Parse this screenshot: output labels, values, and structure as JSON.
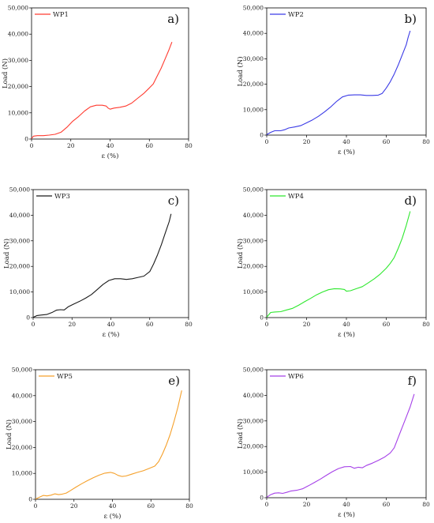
{
  "chart_data": [
    {
      "type": "line",
      "panel_label": "a)",
      "xlabel": "ε (%)",
      "ylabel": "Load (N)",
      "xlim": [
        0,
        80
      ],
      "ylim": [
        0,
        50000
      ],
      "xticks": [
        "0",
        "20",
        "40",
        "60",
        "80"
      ],
      "yticks": [
        "0",
        "10,000",
        "20,000",
        "30,000",
        "40,000",
        "50,000"
      ],
      "grid": false,
      "legend_position": "top-left",
      "color": "#ff3b30",
      "series": [
        {
          "name": "WP1",
          "x": [
            0,
            1,
            3,
            6,
            9,
            12,
            15,
            18,
            21,
            24,
            27,
            30,
            33,
            36,
            38,
            39,
            40,
            42,
            45,
            48,
            51,
            54,
            57,
            60,
            62,
            64,
            66,
            68,
            70,
            71.5
          ],
          "y": [
            200,
            1100,
            1300,
            1300,
            1500,
            1800,
            2600,
            4500,
            6800,
            8600,
            10700,
            12300,
            12900,
            12900,
            12600,
            11800,
            11400,
            11800,
            12100,
            12600,
            13700,
            15500,
            17300,
            19500,
            21000,
            24000,
            27000,
            30500,
            34000,
            37000
          ]
        }
      ]
    },
    {
      "type": "line",
      "panel_label": "b)",
      "xlabel": "ε (%)",
      "ylabel": "Load (N)",
      "xlim": [
        0,
        80
      ],
      "ylim": [
        0,
        50000
      ],
      "xticks": [
        "0",
        "20",
        "40",
        "60",
        "80"
      ],
      "yticks": [
        "0",
        "10,000",
        "20,000",
        "30,000",
        "40,000",
        "50,000"
      ],
      "grid": false,
      "legend_position": "top-left",
      "color": "#3a3ae6",
      "series": [
        {
          "name": "WP2",
          "x": [
            0,
            2,
            4,
            7,
            9,
            11,
            14,
            17,
            20,
            23,
            26,
            29,
            32,
            35,
            38,
            41,
            44,
            47,
            50,
            53,
            56,
            58,
            60,
            62,
            64,
            66,
            68,
            70,
            71,
            72
          ],
          "y": [
            200,
            1100,
            1700,
            1700,
            2100,
            2800,
            3200,
            3700,
            4800,
            6000,
            7400,
            9100,
            11000,
            13200,
            15000,
            15700,
            15800,
            15800,
            15600,
            15600,
            15700,
            16400,
            18500,
            21000,
            24000,
            27500,
            31500,
            35500,
            38500,
            41000
          ]
        }
      ]
    },
    {
      "type": "line",
      "panel_label": "c)",
      "xlabel": "ε (%)",
      "ylabel": "Load (N)",
      "xlim": [
        0,
        80
      ],
      "ylim": [
        0,
        50000
      ],
      "xticks": [
        "0",
        "20",
        "40",
        "60",
        "80"
      ],
      "yticks": [
        "0",
        "10,000",
        "20,000",
        "30,000",
        "40,000",
        "50,000"
      ],
      "grid": false,
      "legend_position": "top-left",
      "color": "#1a1a1a",
      "series": [
        {
          "name": "WP3",
          "x": [
            0,
            2,
            4,
            7,
            10,
            12,
            14,
            16,
            18,
            21,
            24,
            27,
            30,
            33,
            36,
            39,
            42,
            45,
            48,
            51,
            54,
            57,
            60,
            62,
            64,
            66,
            68,
            70,
            71
          ],
          "y": [
            100,
            800,
            1000,
            1200,
            2100,
            2900,
            3100,
            3000,
            4200,
            5300,
            6400,
            7600,
            9000,
            11000,
            13000,
            14500,
            15200,
            15200,
            14900,
            15200,
            15700,
            16200,
            18000,
            21000,
            24500,
            28500,
            33000,
            37500,
            40500
          ]
        }
      ]
    },
    {
      "type": "line",
      "panel_label": "d)",
      "xlabel": "ε (%)",
      "ylabel": "Load (N)",
      "xlim": [
        0,
        80
      ],
      "ylim": [
        0,
        50000
      ],
      "xticks": [
        "0",
        "20",
        "40",
        "60",
        "80"
      ],
      "yticks": [
        "0",
        "10,000",
        "20,000",
        "30,000",
        "40,000",
        "50,000"
      ],
      "grid": false,
      "legend_position": "top-left",
      "color": "#2ee82e",
      "series": [
        {
          "name": "WP4",
          "x": [
            0,
            2,
            4,
            7,
            10,
            13,
            16,
            19,
            22,
            25,
            28,
            31,
            34,
            37,
            39,
            40,
            42,
            45,
            48,
            51,
            54,
            57,
            60,
            62,
            64,
            66,
            68,
            70,
            72
          ],
          "y": [
            200,
            2000,
            2200,
            2300,
            3000,
            3600,
            4800,
            6200,
            7500,
            8900,
            10000,
            10900,
            11300,
            11200,
            11000,
            10300,
            10500,
            11300,
            12100,
            13600,
            15200,
            17000,
            19300,
            21200,
            23500,
            27000,
            31000,
            36000,
            41500
          ]
        }
      ]
    },
    {
      "type": "line",
      "panel_label": "e)",
      "xlabel": "ε (%)",
      "ylabel": "Load (N)",
      "xlim": [
        0,
        80
      ],
      "ylim": [
        0,
        50000
      ],
      "xticks": [
        "0",
        "20",
        "40",
        "60",
        "80"
      ],
      "yticks": [
        "0",
        "10,000",
        "20,000",
        "30,000",
        "40,000",
        "50,000"
      ],
      "grid": false,
      "legend_position": "top-left",
      "color": "#f5a02a",
      "series": [
        {
          "name": "WP5",
          "x": [
            0,
            2,
            4,
            6,
            8,
            10,
            12,
            14,
            16,
            18,
            21,
            24,
            27,
            30,
            33,
            36,
            39,
            41,
            43,
            45,
            47,
            50,
            53,
            56,
            59,
            62,
            64,
            66,
            68,
            70,
            72,
            74,
            76
          ],
          "y": [
            100,
            800,
            1500,
            1300,
            1600,
            2100,
            1800,
            2000,
            2400,
            3300,
            4700,
            6000,
            7200,
            8300,
            9300,
            10100,
            10400,
            10000,
            9200,
            8800,
            9000,
            9700,
            10400,
            11000,
            11900,
            12800,
            14500,
            17500,
            21000,
            25000,
            30000,
            35500,
            42000
          ]
        }
      ]
    },
    {
      "type": "line",
      "panel_label": "f)",
      "xlabel": "ε (%)",
      "ylabel": "Load (N)",
      "xlim": [
        0,
        80
      ],
      "ylim": [
        0,
        50000
      ],
      "xticks": [
        "0",
        "20",
        "40",
        "60",
        "80"
      ],
      "yticks": [
        "0",
        "10,000",
        "20,000",
        "30,000",
        "40,000",
        "50,000"
      ],
      "grid": false,
      "legend_position": "top-left",
      "color": "#a540e8",
      "series": [
        {
          "name": "WP6",
          "x": [
            0,
            2,
            4,
            6,
            8,
            10,
            12,
            15,
            18,
            21,
            24,
            27,
            30,
            33,
            36,
            39,
            42,
            44,
            46,
            48,
            50,
            53,
            56,
            59,
            62,
            64,
            66,
            68,
            70,
            72,
            74
          ],
          "y": [
            200,
            1200,
            1800,
            1900,
            1700,
            2100,
            2600,
            2900,
            3500,
            4700,
            6000,
            7300,
            8800,
            10200,
            11400,
            12100,
            12200,
            11500,
            11900,
            11700,
            12600,
            13500,
            14600,
            15800,
            17500,
            19500,
            23500,
            27500,
            31500,
            35500,
            40500
          ]
        }
      ]
    }
  ]
}
